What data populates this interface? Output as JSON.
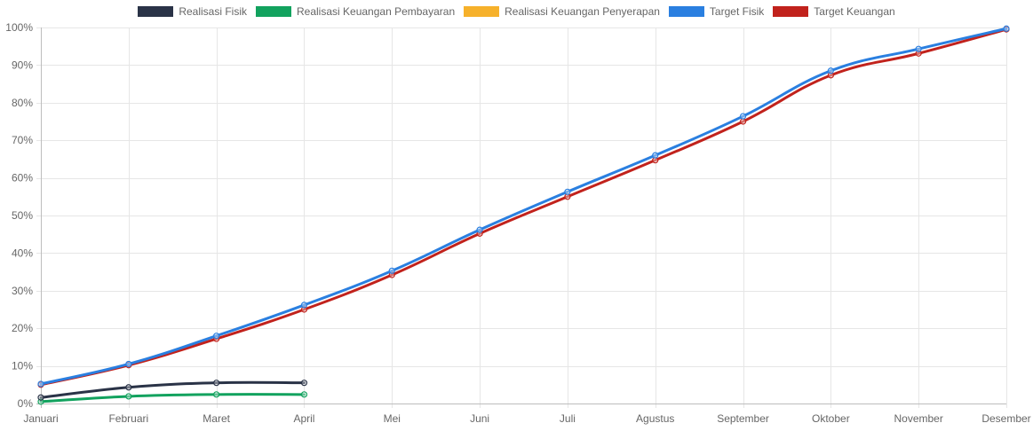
{
  "chart_data": {
    "type": "line",
    "categories": [
      "Januari",
      "Februari",
      "Maret",
      "April",
      "Mei",
      "Juni",
      "Juli",
      "Agustus",
      "September",
      "Oktober",
      "November",
      "Desember"
    ],
    "ylim": [
      0,
      100
    ],
    "y_ticks": [
      0,
      10,
      20,
      30,
      40,
      50,
      60,
      70,
      80,
      90,
      100
    ],
    "y_tick_suffix": "%",
    "grid": true,
    "legend_position": "top",
    "series": [
      {
        "name": "Realisasi Fisik",
        "color": "#2a3347",
        "values": [
          1.6,
          4.3,
          5.5,
          5.5,
          null,
          null,
          null,
          null,
          null,
          null,
          null,
          null
        ]
      },
      {
        "name": "Realisasi Keuangan Pembayaran",
        "color": "#12a25e",
        "values": [
          0.5,
          1.9,
          2.4,
          2.4,
          null,
          null,
          null,
          null,
          null,
          null,
          null,
          null
        ]
      },
      {
        "name": "Realisasi Keuangan Penyerapan",
        "color": "#f6b12b",
        "values": [
          null,
          null,
          null,
          null,
          null,
          null,
          null,
          null,
          null,
          null,
          null,
          null
        ]
      },
      {
        "name": "Target Fisik",
        "color": "#2a7fe0",
        "values": [
          5.2,
          10.5,
          18.0,
          26.2,
          35.3,
          46.2,
          56.3,
          66.0,
          76.4,
          88.5,
          94.3,
          99.7
        ]
      },
      {
        "name": "Target Keuangan",
        "color": "#c1221c",
        "values": [
          5.0,
          10.2,
          17.2,
          25.0,
          34.2,
          45.2,
          55.0,
          64.7,
          75.0,
          87.3,
          93.1,
          99.5
        ]
      }
    ]
  }
}
